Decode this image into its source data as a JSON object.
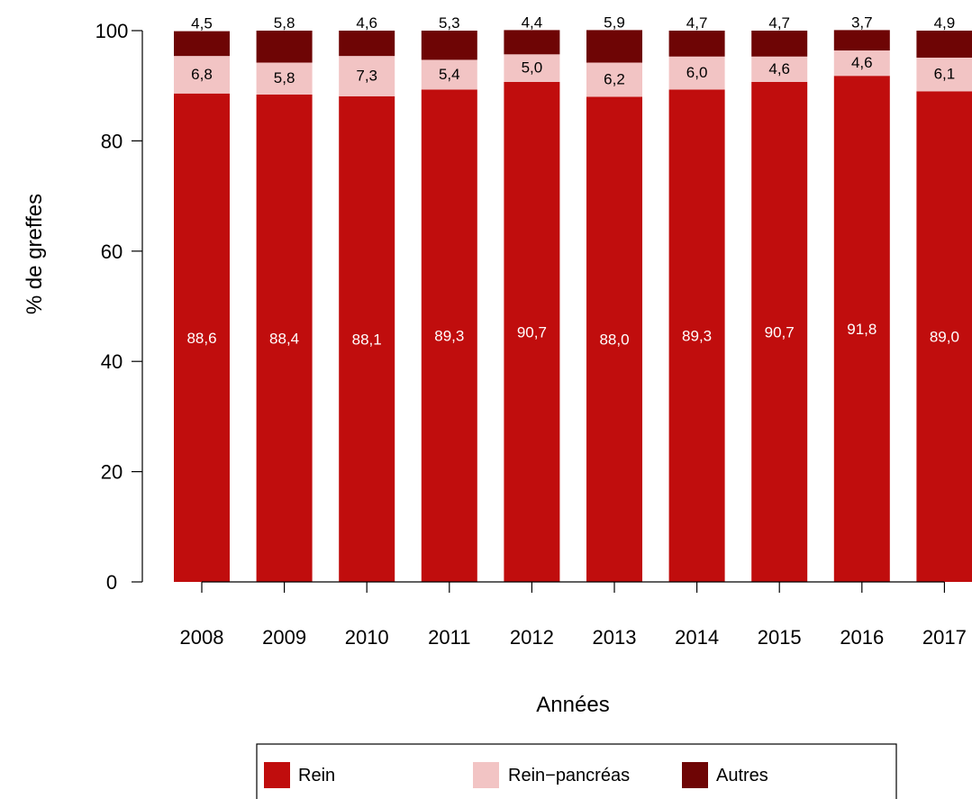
{
  "chart_data": {
    "type": "bar",
    "stacked": true,
    "title": "",
    "xlabel": "Années",
    "ylabel": "% de greffes",
    "ylim": [
      0,
      100
    ],
    "yticks": [
      0,
      20,
      40,
      60,
      80,
      100
    ],
    "categories": [
      "2008",
      "2009",
      "2010",
      "2011",
      "2012",
      "2013",
      "2014",
      "2015",
      "2016",
      "2017"
    ],
    "series": [
      {
        "name": "Rein",
        "color": "#c00d0d",
        "label_color": "#ffffff",
        "values": [
          88.6,
          88.4,
          88.1,
          89.3,
          90.7,
          88.0,
          89.3,
          90.7,
          91.8,
          89.0
        ],
        "labels": [
          "88,6",
          "88,4",
          "88,1",
          "89,3",
          "90,7",
          "88,0",
          "89,3",
          "90,7",
          "91,8",
          "89,0"
        ]
      },
      {
        "name": "Rein−pancréas",
        "color": "#f2c4c4",
        "label_color": "#000000",
        "values": [
          6.8,
          5.8,
          7.3,
          5.4,
          5.0,
          6.2,
          6.0,
          4.6,
          4.6,
          6.1
        ],
        "labels": [
          "6,8",
          "5,8",
          "7,3",
          "5,4",
          "5,0",
          "6,2",
          "6,0",
          "4,6",
          "4,6",
          "6,1"
        ]
      },
      {
        "name": "Autres",
        "color": "#6e0505",
        "label_color": "#000000",
        "values": [
          4.5,
          5.8,
          4.6,
          5.3,
          4.4,
          5.9,
          4.7,
          4.7,
          3.7,
          4.9
        ],
        "labels": [
          "4,5",
          "5,8",
          "4,6",
          "5,3",
          "4,4",
          "5,9",
          "4,7",
          "4,7",
          "3,7",
          "4,9"
        ]
      }
    ],
    "legend": {
      "position": "bottom"
    }
  }
}
